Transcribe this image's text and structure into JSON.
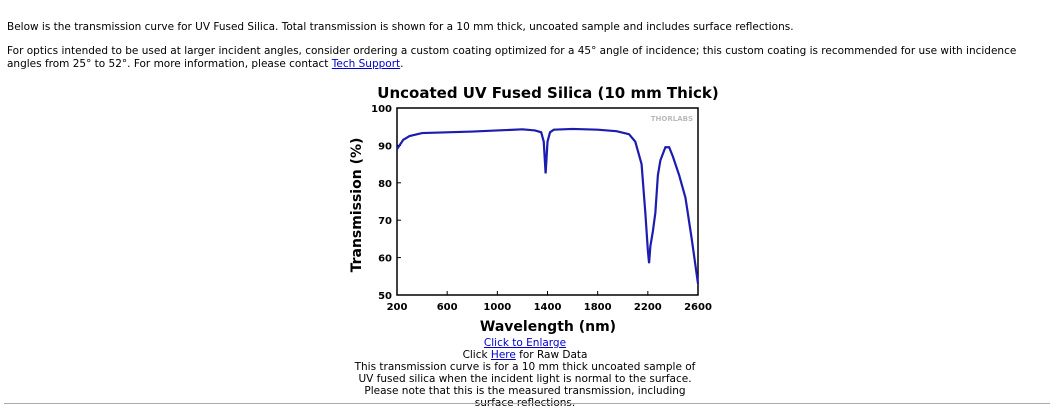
{
  "intro": {
    "p1": "Below is the transmission curve for UV Fused Silica. Total transmission is shown for a 10 mm thick, uncoated sample and includes surface reflections.",
    "p2_before": "For optics intended to be used at larger incident angles, consider ordering a custom coating optimized for a 45° angle of incidence; this custom coating is recommended for use with incidence angles from 25° to 52°. For more information, please contact ",
    "p2_link": "Tech Support",
    "p2_after": "."
  },
  "chart_data": {
    "type": "line",
    "title": "Uncoated UV Fused Silica (10 mm Thick)",
    "x_label": "Wavelength (nm)",
    "y_label": "Transmission (%)",
    "watermark": "THORLABS",
    "xlim": [
      200,
      2600
    ],
    "xticks": [
      200,
      600,
      1000,
      1400,
      1800,
      2200,
      2600
    ],
    "ylim": [
      50,
      100
    ],
    "yticks": [
      50,
      60,
      70,
      80,
      90,
      100
    ],
    "series": [
      {
        "name": "Transmission",
        "color": "#1c1cb0",
        "x": [
          200,
          250,
          300,
          400,
          600,
          800,
          1000,
          1200,
          1300,
          1350,
          1370,
          1385,
          1400,
          1420,
          1450,
          1600,
          1800,
          1950,
          2050,
          2100,
          2150,
          2180,
          2200,
          2210,
          2220,
          2240,
          2260,
          2280,
          2300,
          2340,
          2370,
          2400,
          2450,
          2500,
          2550,
          2600
        ],
        "values": [
          89,
          91.5,
          92.5,
          93.3,
          93.5,
          93.7,
          94,
          94.3,
          94,
          93.5,
          91,
          82.5,
          91,
          93.5,
          94.2,
          94.4,
          94.2,
          93.8,
          93,
          91,
          85,
          72,
          62,
          58.5,
          63,
          67,
          72,
          82,
          86,
          89.5,
          89.5,
          87,
          82,
          76,
          65,
          53
        ]
      }
    ]
  },
  "caption": {
    "enlarge": "Click to Enlarge",
    "raw_before": "Click ",
    "raw_link": "Here",
    "raw_after": " for Raw Data",
    "note": "This transmission curve is for a 10 mm thick uncoated sample of UV fused silica when the incident light is normal to the surface. Please note that this is the measured transmission, including surface reflections."
  }
}
